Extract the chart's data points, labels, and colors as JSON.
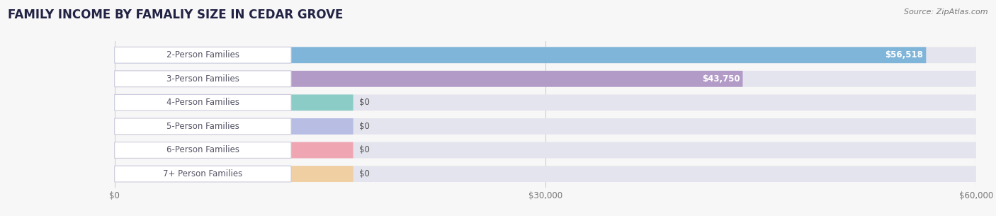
{
  "title": "FAMILY INCOME BY FAMALIY SIZE IN CEDAR GROVE",
  "source": "Source: ZipAtlas.com",
  "categories": [
    "2-Person Families",
    "3-Person Families",
    "4-Person Families",
    "5-Person Families",
    "6-Person Families",
    "7+ Person Families"
  ],
  "values": [
    56518,
    43750,
    0,
    0,
    0,
    0
  ],
  "bar_colors": [
    "#6aabd6",
    "#a98bbf",
    "#6dc5bb",
    "#a8b0e0",
    "#f4929e",
    "#f5c98a"
  ],
  "value_labels": [
    "$56,518",
    "$43,750",
    "$0",
    "$0",
    "$0",
    "$0"
  ],
  "xlim": [
    0,
    60000
  ],
  "xticklabels": [
    "$0",
    "$30,000",
    "$60,000"
  ],
  "background_color": "#f7f7f7",
  "bar_bg_color": "#e4e4ee",
  "title_fontsize": 12,
  "source_fontsize": 8,
  "label_fontsize": 8.5,
  "value_fontsize": 8.5,
  "label_color": "#555566",
  "title_color": "#222244"
}
